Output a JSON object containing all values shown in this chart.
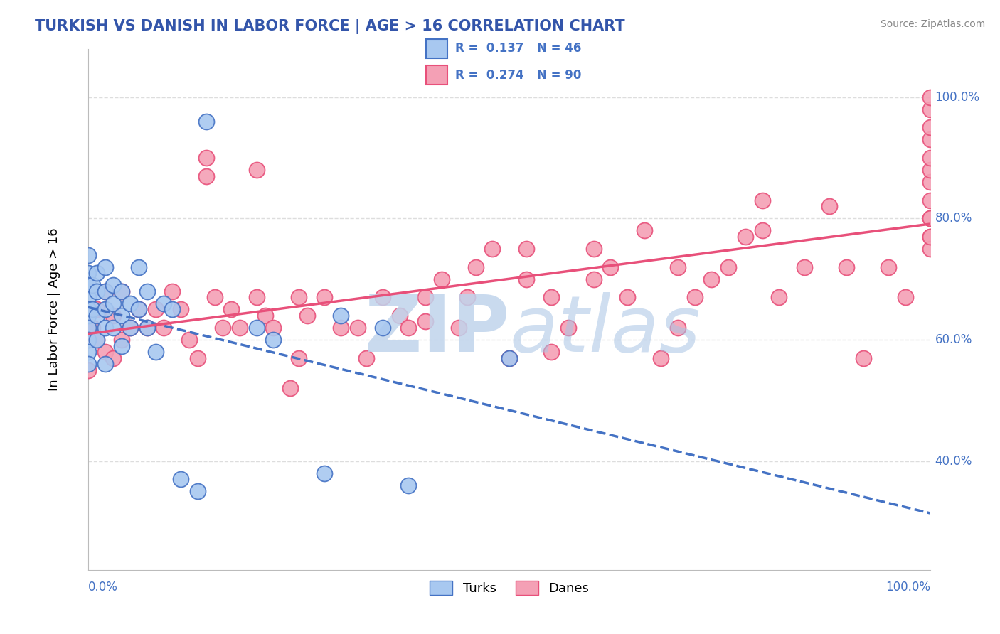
{
  "title": "TURKISH VS DANISH IN LABOR FORCE | AGE > 16 CORRELATION CHART",
  "source_text": "Source: ZipAtlas.com",
  "ylabel": "In Labor Force | Age > 16",
  "x_min": 0.0,
  "x_max": 1.0,
  "y_min": 0.22,
  "y_max": 1.08,
  "y_tick_labels": [
    "40.0%",
    "60.0%",
    "80.0%",
    "100.0%"
  ],
  "y_tick_positions": [
    0.4,
    0.6,
    0.8,
    1.0
  ],
  "legend_label1": "Turks",
  "legend_label2": "Danes",
  "R1": 0.137,
  "N1": 46,
  "R2": 0.274,
  "N2": 90,
  "color_turks": "#A8C8F0",
  "color_danes": "#F4A0B5",
  "trendline_color_turks": "#4472C4",
  "trendline_color_danes": "#E8507A",
  "watermark_zip_color": "#C0D4EC",
  "watermark_atlas_color": "#A8C4E4",
  "grid_color": "#DDDDDD",
  "background_color": "#FFFFFF",
  "title_color": "#3355AA",
  "axis_label_color": "#4472C4",
  "turks_x": [
    0.0,
    0.0,
    0.0,
    0.0,
    0.0,
    0.0,
    0.0,
    0.0,
    0.0,
    0.0,
    0.005,
    0.005,
    0.01,
    0.01,
    0.01,
    0.01,
    0.02,
    0.02,
    0.02,
    0.02,
    0.02,
    0.03,
    0.03,
    0.03,
    0.04,
    0.04,
    0.04,
    0.05,
    0.05,
    0.06,
    0.06,
    0.07,
    0.07,
    0.08,
    0.09,
    0.1,
    0.11,
    0.13,
    0.14,
    0.2,
    0.22,
    0.28,
    0.3,
    0.35,
    0.38,
    0.5
  ],
  "turks_y": [
    0.74,
    0.71,
    0.69,
    0.67,
    0.65,
    0.64,
    0.62,
    0.6,
    0.58,
    0.56,
    0.69,
    0.65,
    0.71,
    0.68,
    0.64,
    0.6,
    0.72,
    0.68,
    0.65,
    0.62,
    0.56,
    0.69,
    0.66,
    0.62,
    0.68,
    0.64,
    0.59,
    0.66,
    0.62,
    0.72,
    0.65,
    0.68,
    0.62,
    0.58,
    0.66,
    0.65,
    0.37,
    0.35,
    0.96,
    0.62,
    0.6,
    0.38,
    0.64,
    0.62,
    0.36,
    0.57
  ],
  "danes_x": [
    0.0,
    0.0,
    0.0,
    0.0,
    0.005,
    0.01,
    0.01,
    0.02,
    0.02,
    0.03,
    0.03,
    0.04,
    0.04,
    0.05,
    0.06,
    0.07,
    0.08,
    0.09,
    0.1,
    0.11,
    0.12,
    0.13,
    0.14,
    0.15,
    0.16,
    0.17,
    0.18,
    0.2,
    0.21,
    0.22,
    0.24,
    0.25,
    0.26,
    0.28,
    0.3,
    0.32,
    0.33,
    0.35,
    0.37,
    0.38,
    0.4,
    0.42,
    0.44,
    0.46,
    0.48,
    0.5,
    0.52,
    0.55,
    0.57,
    0.6,
    0.62,
    0.64,
    0.66,
    0.68,
    0.7,
    0.72,
    0.74,
    0.76,
    0.78,
    0.8,
    0.82,
    0.85,
    0.88,
    0.9,
    0.92,
    0.95,
    0.97,
    1.0,
    1.0,
    1.0,
    1.0,
    1.0,
    1.0,
    1.0,
    1.0,
    1.0,
    1.0,
    1.0,
    1.0,
    1.0,
    0.14,
    0.2,
    0.25,
    0.4,
    0.55,
    0.6,
    0.7,
    0.8,
    0.52,
    0.45
  ],
  "danes_y": [
    0.65,
    0.62,
    0.6,
    0.55,
    0.62,
    0.65,
    0.6,
    0.68,
    0.58,
    0.64,
    0.57,
    0.68,
    0.6,
    0.62,
    0.65,
    0.62,
    0.65,
    0.62,
    0.68,
    0.65,
    0.6,
    0.57,
    0.87,
    0.67,
    0.62,
    0.65,
    0.62,
    0.67,
    0.64,
    0.62,
    0.52,
    0.67,
    0.64,
    0.67,
    0.62,
    0.62,
    0.57,
    0.67,
    0.64,
    0.62,
    0.67,
    0.7,
    0.62,
    0.72,
    0.75,
    0.57,
    0.7,
    0.67,
    0.62,
    0.7,
    0.72,
    0.67,
    0.78,
    0.57,
    0.72,
    0.67,
    0.7,
    0.72,
    0.77,
    0.83,
    0.67,
    0.72,
    0.82,
    0.72,
    0.57,
    0.72,
    0.67,
    0.77,
    0.8,
    0.83,
    0.86,
    0.88,
    0.9,
    0.93,
    0.95,
    0.98,
    1.0,
    0.75,
    0.77,
    0.8,
    0.9,
    0.88,
    0.57,
    0.63,
    0.58,
    0.75,
    0.62,
    0.78,
    0.75,
    0.67
  ]
}
